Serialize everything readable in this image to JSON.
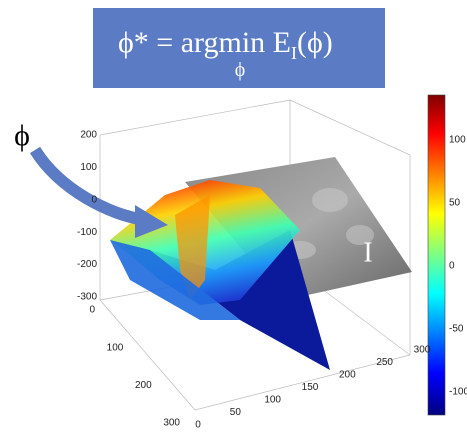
{
  "formula": {
    "lhs": "ϕ*",
    "eq": "=",
    "op": "argmin",
    "op_sub": "ϕ",
    "func": "E",
    "func_sub": "I",
    "arg": "(ϕ)"
  },
  "labels": {
    "phi": "ϕ",
    "image": "I"
  },
  "axes": {
    "z_ticks": [
      200,
      100,
      0,
      -100,
      -200,
      -300
    ],
    "y_ticks": [
      0,
      100,
      200,
      300
    ],
    "x_ticks": [
      0,
      50,
      100,
      150,
      200,
      250,
      300
    ]
  },
  "colorbar": {
    "ticks": [
      100,
      50,
      0,
      -50,
      -100
    ]
  }
}
